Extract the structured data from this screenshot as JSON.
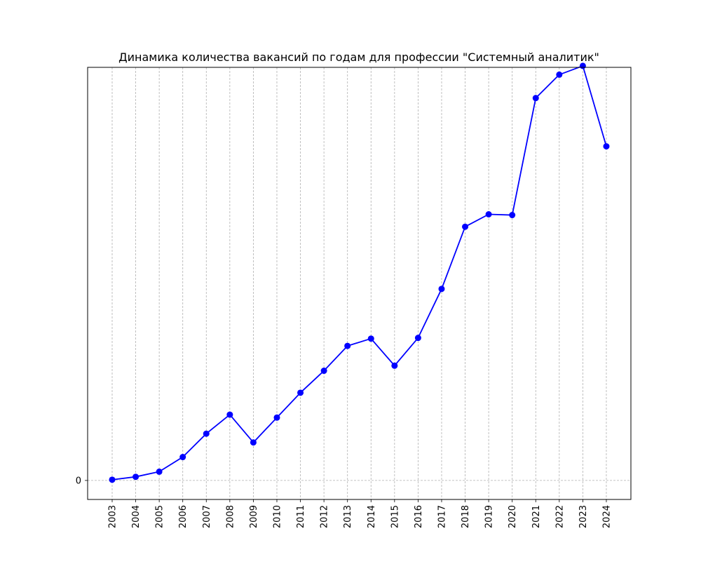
{
  "chart_data": {
    "type": "line",
    "title": "Динамика количества вакансий по годам для профессии \"Системный аналитик\"",
    "xlabel": "",
    "ylabel": "",
    "categories": [
      "2003",
      "2004",
      "2005",
      "2006",
      "2007",
      "2008",
      "2009",
      "2010",
      "2011",
      "2012",
      "2013",
      "2014",
      "2015",
      "2016",
      "2017",
      "2018",
      "2019",
      "2020",
      "2021",
      "2022",
      "2023",
      "2024"
    ],
    "y_ticks": [
      0
    ],
    "ylim": [
      -52,
      1130
    ],
    "grid": true,
    "series": [
      {
        "color": "#0000ff",
        "marker": "circle",
        "values": [
          2,
          10,
          24,
          64,
          128,
          180,
          104,
          172,
          240,
          300,
          368,
          388,
          314,
          390,
          524,
          694,
          728,
          726,
          1046,
          1110,
          1134,
          914
        ]
      }
    ]
  }
}
